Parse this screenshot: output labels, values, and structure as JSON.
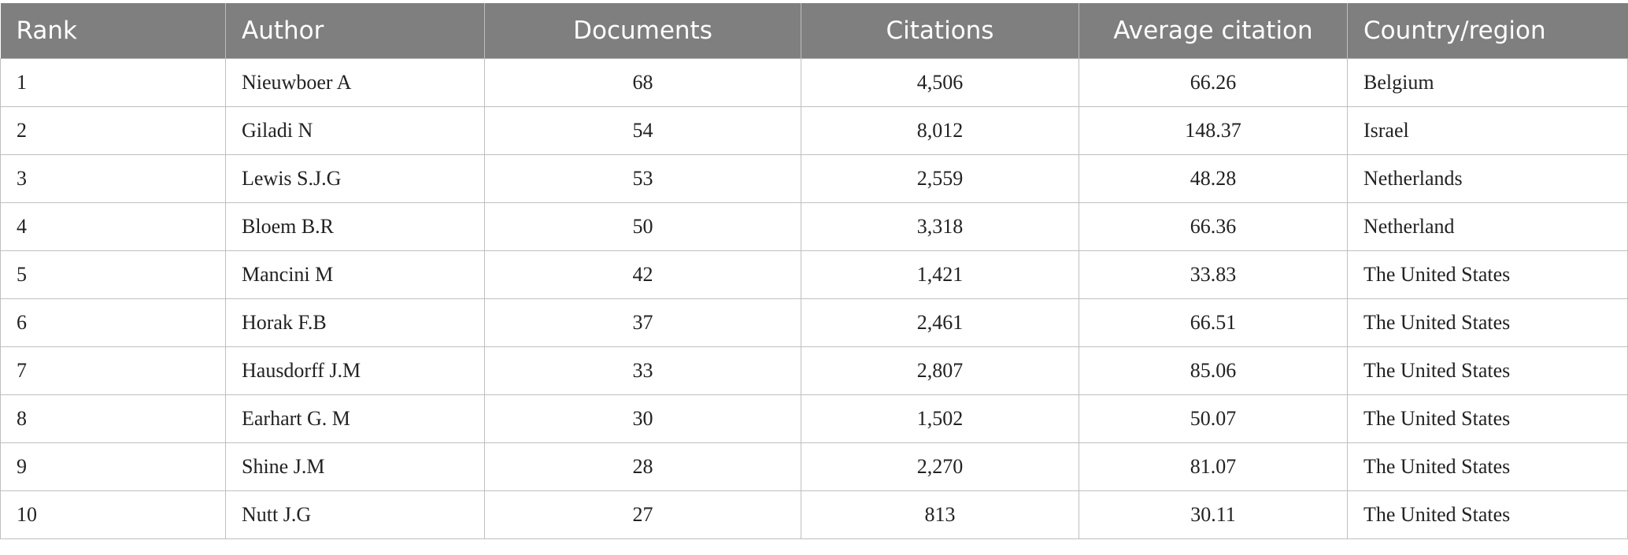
{
  "table": {
    "columns": [
      "Rank",
      "Author",
      "Documents",
      "Citations",
      "Average citation",
      "Country/region"
    ],
    "rows": [
      [
        "1",
        "Nieuwboer A",
        "68",
        "4,506",
        "66.26",
        "Belgium"
      ],
      [
        "2",
        "Giladi N",
        "54",
        "8,012",
        "148.37",
        "Israel"
      ],
      [
        "3",
        "Lewis S.J.G",
        "53",
        "2,559",
        "48.28",
        "Netherlands"
      ],
      [
        "4",
        "Bloem B.R",
        "50",
        "3,318",
        "66.36",
        "Netherland"
      ],
      [
        "5",
        "Mancini M",
        "42",
        "1,421",
        "33.83",
        "The United States"
      ],
      [
        "6",
        "Horak F.B",
        "37",
        "2,461",
        "66.51",
        "The United States"
      ],
      [
        "7",
        "Hausdorff J.M",
        "33",
        "2,807",
        "85.06",
        "The United States"
      ],
      [
        "8",
        "Earhart G. M",
        "30",
        "1,502",
        "50.07",
        "The United States"
      ],
      [
        "9",
        "Shine J.M",
        "28",
        "2,270",
        "81.07",
        "The United States"
      ],
      [
        "10",
        "Nutt J.G",
        "27",
        "813",
        "30.11",
        "The United States"
      ]
    ]
  }
}
